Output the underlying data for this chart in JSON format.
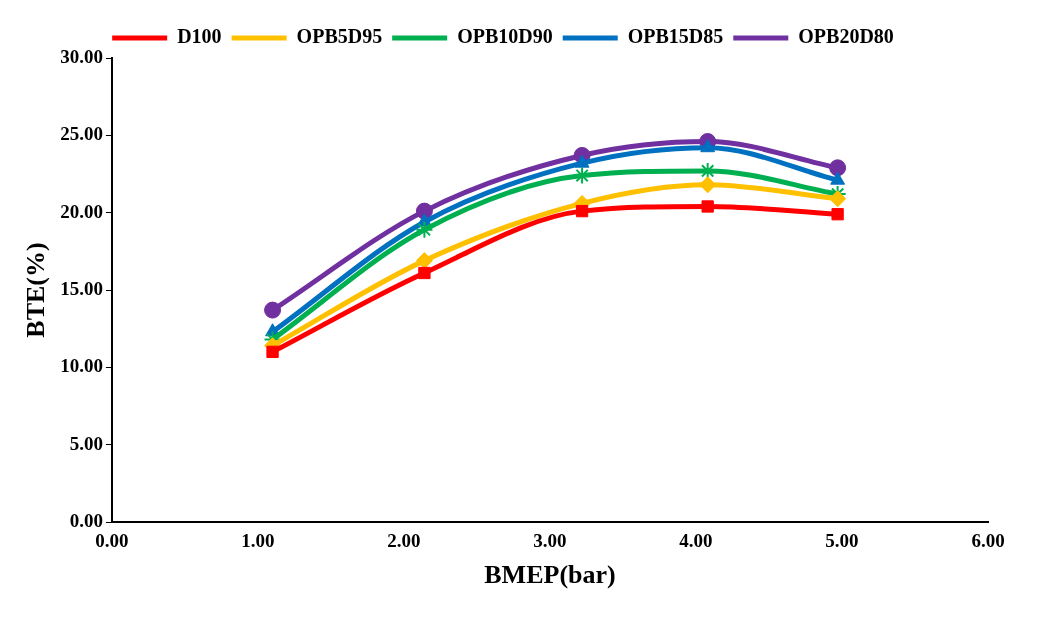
{
  "chart_data": {
    "type": "line",
    "xlabel": "BMEP(bar)",
    "ylabel": "BTE(%)",
    "xlim": [
      0,
      6
    ],
    "xticks": [
      {
        "value": 0,
        "label": "0.00"
      },
      {
        "value": 1,
        "label": "1.00"
      },
      {
        "value": 2,
        "label": "2.00"
      },
      {
        "value": 3,
        "label": "3.00"
      },
      {
        "value": 4,
        "label": "4.00"
      },
      {
        "value": 5,
        "label": "5.00"
      },
      {
        "value": 6,
        "label": "6.00"
      }
    ],
    "ylim": [
      0,
      30
    ],
    "yticks": [
      {
        "value": 0,
        "label": "0.00"
      },
      {
        "value": 5,
        "label": "5.00"
      },
      {
        "value": 10,
        "label": "10.00"
      },
      {
        "value": 15,
        "label": "15.00"
      },
      {
        "value": 20,
        "label": "20.00"
      },
      {
        "value": 25,
        "label": "25.00"
      },
      {
        "value": 30,
        "label": "30.00"
      }
    ],
    "grid": false,
    "legend": "top",
    "x": [
      1.1,
      2.14,
      3.22,
      4.08,
      4.97
    ],
    "series": [
      {
        "name": "D100",
        "color": "#ff0000",
        "marker": "square",
        "values": [
          11.0,
          16.1,
          20.1,
          20.4,
          19.9
        ]
      },
      {
        "name": "OPB5D95",
        "color": "#ffc000",
        "marker": "diamond",
        "values": [
          11.4,
          16.9,
          20.6,
          21.8,
          20.9
        ]
      },
      {
        "name": "OPB10D90",
        "color": "#00b050",
        "marker": "cross",
        "values": [
          11.8,
          18.9,
          22.4,
          22.7,
          21.2
        ]
      },
      {
        "name": "OPB15D85",
        "color": "#0070c0",
        "marker": "triangle",
        "values": [
          12.3,
          19.4,
          23.2,
          24.2,
          22.1
        ]
      },
      {
        "name": "OPB20D80",
        "color": "#7030a0",
        "marker": "circle",
        "values": [
          13.7,
          20.1,
          23.7,
          24.6,
          22.9
        ]
      }
    ]
  }
}
